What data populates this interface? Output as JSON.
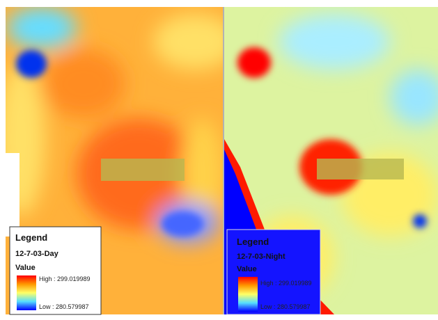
{
  "panels": [
    {
      "legend": {
        "title": "Legend",
        "layer": "12-7-03-Day",
        "field": "Value",
        "high": "High : 299.019989",
        "low": "Low : 280.579987"
      }
    },
    {
      "legend": {
        "title": "Legend",
        "layer": "12-7-03-Night",
        "field": "Value",
        "high": "High : 299.019989",
        "low": "Low : 280.579987"
      }
    }
  ]
}
